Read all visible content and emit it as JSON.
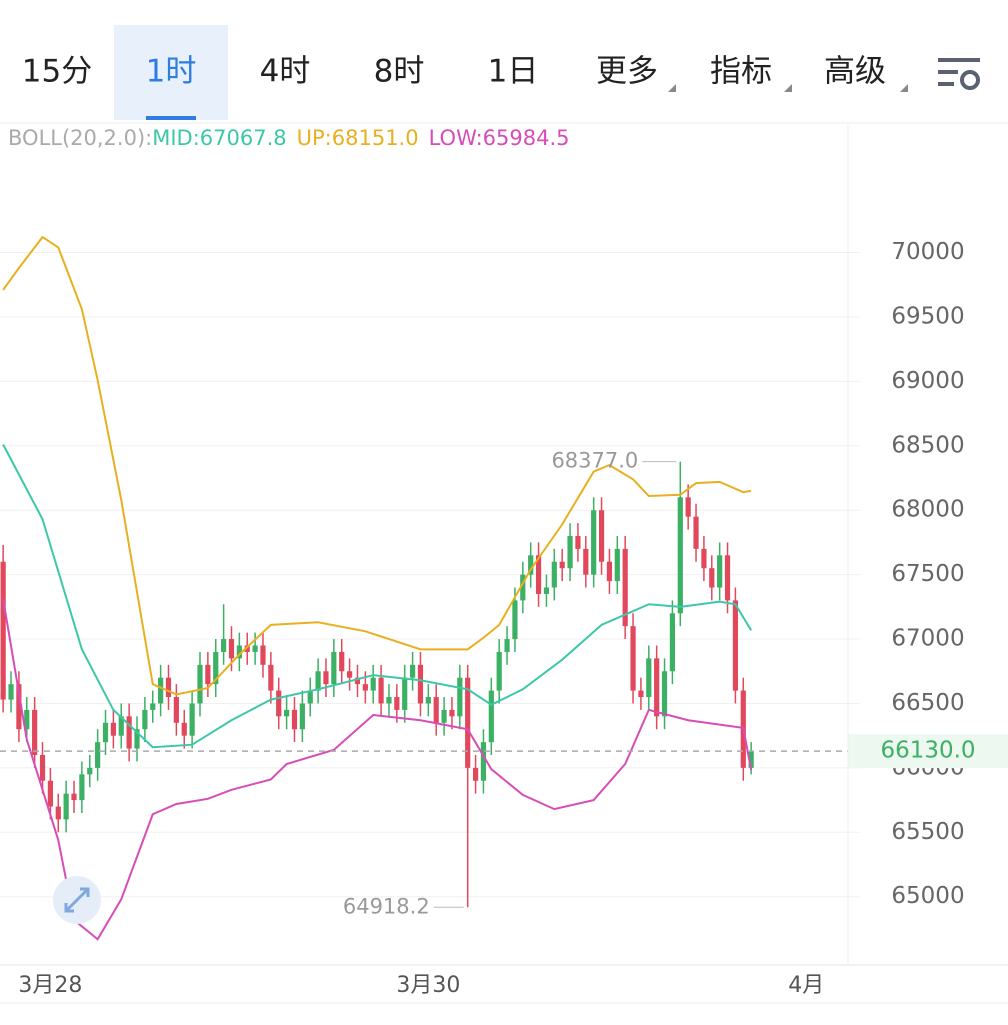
{
  "tabs": [
    "15分",
    "1时",
    "4时",
    "8时",
    "1日",
    "更多",
    "指标",
    "高级"
  ],
  "selected_tab": 1,
  "chart_data": {
    "type": "candlestick",
    "indicator": "BOLL(20,2.0):",
    "xlim": [
      -0.4,
      107.3
    ],
    "xticks": [
      {
        "value": 6,
        "label": "3月28"
      },
      {
        "value": 54,
        "label": "3月30"
      },
      {
        "value": 102,
        "label": "4月"
      }
    ],
    "ylim": [
      64470,
      70990
    ],
    "yticks": [
      65000,
      65500,
      66000,
      66500,
      67000,
      67500,
      68000,
      68500,
      69000,
      69500,
      70000
    ],
    "grid": true,
    "up_color": "#3cb064",
    "down_color": "#e2485c",
    "open": [
      67600,
      66530,
      66650,
      66300,
      66450,
      66100,
      65900,
      65700,
      65600,
      65800,
      65750,
      65950,
      66000,
      66200,
      66350,
      66250,
      66400,
      66150,
      66300,
      66450,
      66500,
      66700,
      66550,
      66350,
      66250,
      66500,
      66800,
      66650,
      66900,
      67000,
      66850,
      66950,
      66900,
      66950,
      66800,
      66600,
      66400,
      66450,
      66300,
      66500,
      66600,
      66750,
      66650,
      66900,
      66750,
      66700,
      66650,
      66600,
      66700,
      66500,
      66550,
      66450,
      66700,
      66800,
      66500,
      66550,
      66350,
      66450,
      66400,
      66700,
      66000,
      65900,
      66200,
      66600,
      66900,
      67000,
      67300,
      67500,
      67650,
      67350,
      67400,
      67600,
      67550,
      67800,
      67700,
      67500,
      68000,
      67600,
      67450,
      67700,
      67100,
      66600,
      66550,
      66850,
      66400,
      66750,
      67200,
      68100,
      67950,
      67700,
      67550,
      67400,
      67650,
      67300,
      66600,
      66000
    ],
    "high": [
      67730,
      66750,
      66750,
      66550,
      66550,
      66200,
      66000,
      65800,
      65900,
      65900,
      66050,
      66100,
      66300,
      66450,
      66450,
      66500,
      66500,
      66400,
      66550,
      66600,
      66800,
      66800,
      66650,
      66450,
      66600,
      66900,
      66900,
      67000,
      67270,
      67100,
      67050,
      67050,
      67050,
      67050,
      66900,
      66700,
      66550,
      66550,
      66600,
      66700,
      66850,
      66850,
      67000,
      67000,
      66850,
      66800,
      66750,
      66800,
      66800,
      66650,
      66650,
      66800,
      66900,
      66900,
      66650,
      66650,
      66550,
      66550,
      66800,
      66800,
      66100,
      66300,
      66700,
      67000,
      67100,
      67400,
      67600,
      67750,
      67750,
      67500,
      67700,
      67700,
      67900,
      67900,
      67800,
      68100,
      68100,
      67700,
      67800,
      67800,
      67200,
      66700,
      66950,
      66950,
      66850,
      67300,
      68377,
      68200,
      68050,
      67800,
      67650,
      67750,
      67750,
      67400,
      66700,
      66200
    ],
    "low": [
      66430,
      66430,
      66200,
      66200,
      66000,
      65800,
      65600,
      65500,
      65500,
      65650,
      65650,
      65850,
      65900,
      66100,
      66150,
      66150,
      66050,
      66050,
      66200,
      66350,
      66400,
      66450,
      66250,
      66150,
      66150,
      66400,
      66550,
      66550,
      66800,
      66750,
      66750,
      66800,
      66800,
      66700,
      66500,
      66300,
      66300,
      66200,
      66200,
      66400,
      66500,
      66550,
      66550,
      66650,
      66600,
      66550,
      66500,
      66500,
      66400,
      66400,
      66350,
      66350,
      66600,
      66400,
      66400,
      66250,
      66250,
      66300,
      66300,
      64918.2,
      65800,
      65800,
      66100,
      66500,
      66800,
      66900,
      67200,
      67400,
      67250,
      67250,
      67300,
      67450,
      67450,
      67600,
      67400,
      67400,
      67500,
      67350,
      67350,
      67000,
      66500,
      66450,
      66450,
      66300,
      66300,
      66650,
      67100,
      67850,
      67600,
      67450,
      67300,
      67300,
      67200,
      66500,
      65900,
      65950
    ],
    "close": [
      66530,
      66650,
      66300,
      66450,
      66100,
      65900,
      65700,
      65600,
      65800,
      65750,
      65950,
      66000,
      66200,
      66350,
      66250,
      66400,
      66150,
      66300,
      66450,
      66500,
      66700,
      66550,
      66350,
      66250,
      66500,
      66800,
      66650,
      66900,
      67000,
      66850,
      66950,
      66900,
      66950,
      66800,
      66600,
      66400,
      66450,
      66300,
      66500,
      66600,
      66750,
      66650,
      66900,
      66750,
      66700,
      66650,
      66600,
      66700,
      66500,
      66550,
      66450,
      66700,
      66800,
      66500,
      66550,
      66350,
      66450,
      66400,
      66700,
      66000,
      65900,
      66200,
      66600,
      66900,
      67000,
      67300,
      67500,
      67650,
      67350,
      67400,
      67600,
      67550,
      67800,
      67700,
      67500,
      68000,
      67600,
      67450,
      67700,
      67100,
      66600,
      66550,
      66850,
      66400,
      66750,
      67200,
      68100,
      67950,
      67700,
      67550,
      67400,
      67650,
      67300,
      66600,
      66000,
      66130
    ],
    "series": [
      {
        "name": "MID:67067.8",
        "color": "#3cc8a8",
        "x": [
          0,
          5,
          10,
          14,
          19,
          24,
          29,
          34,
          40,
          47,
          53,
          59,
          62,
          66,
          71,
          76,
          82,
          86,
          91,
          93,
          95
        ],
        "values": [
          68510,
          67930,
          66920,
          66450,
          66160,
          66180,
          66370,
          66530,
          66610,
          66720,
          66680,
          66610,
          66490,
          66610,
          66840,
          67110,
          67270,
          67250,
          67290,
          67270,
          67067.8
        ]
      },
      {
        "name": "UP:68151.0",
        "color": "#e8b020",
        "x": [
          0,
          2,
          5,
          7,
          10,
          12,
          15,
          19,
          22,
          26,
          30,
          34,
          40,
          46,
          53,
          59,
          61,
          63,
          67,
          71,
          75,
          77,
          80,
          82,
          86,
          88,
          91,
          94,
          95
        ],
        "values": [
          69710,
          69880,
          70120,
          70040,
          69560,
          69010,
          68080,
          66650,
          66570,
          66620,
          66880,
          67110,
          67130,
          67060,
          66920,
          66920,
          67010,
          67110,
          67540,
          67890,
          68300,
          68350,
          68240,
          68110,
          68120,
          68210,
          68220,
          68140,
          68151
        ]
      },
      {
        "name": "LOW:65984.5",
        "color": "#d84cb8",
        "x": [
          0,
          3,
          7,
          9,
          12,
          15,
          19,
          22,
          26,
          29,
          34,
          36,
          42,
          47,
          53,
          59,
          62,
          66,
          70,
          75,
          79,
          82,
          87,
          94,
          95
        ],
        "values": [
          67310,
          66220,
          65440,
          64820,
          64670,
          64980,
          65640,
          65720,
          65760,
          65830,
          65910,
          66030,
          66140,
          66410,
          66370,
          66300,
          65990,
          65790,
          65680,
          65750,
          66030,
          66450,
          66370,
          66310,
          65984.5
        ]
      }
    ],
    "max_marker": {
      "x": 86,
      "value": 68377,
      "label": "68377.0"
    },
    "min_marker": {
      "x": 59,
      "value": 64918.2,
      "label": "64918.2"
    },
    "last_price": {
      "value": 66130,
      "label": "66130.0"
    }
  }
}
